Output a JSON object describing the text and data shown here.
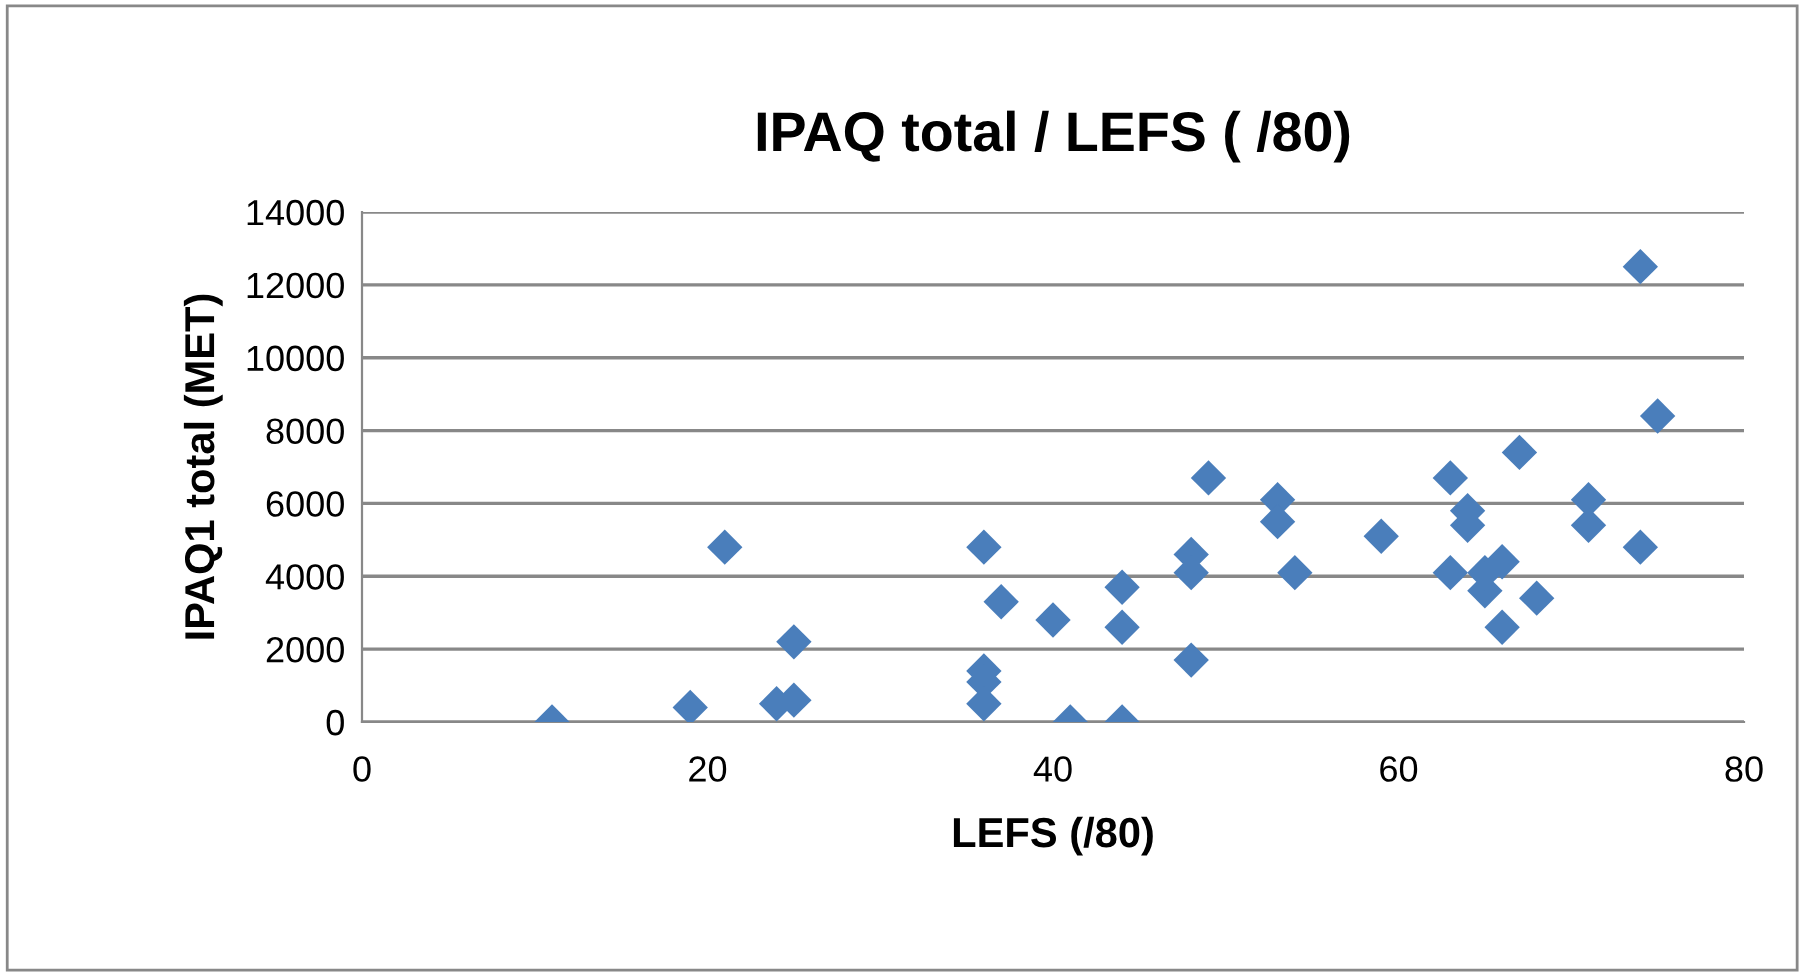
{
  "chart_data": {
    "type": "scatter",
    "title": "IPAQ total / LEFS ( /80)",
    "xlabel": "LEFS (/80)",
    "ylabel": "IPAQ1 total (MET)",
    "x": [
      11,
      19,
      21,
      24,
      25,
      25,
      36,
      36,
      36,
      36,
      37,
      40,
      41,
      44,
      44,
      44,
      48,
      48,
      48,
      49,
      53,
      53,
      54,
      59,
      63,
      63,
      64,
      64,
      65,
      65,
      66,
      66,
      67,
      68,
      71,
      71,
      74,
      74,
      75
    ],
    "series": [
      {
        "color": "#4a7ebb",
        "values": [
          0,
          400,
          4800,
          500,
          600,
          2200,
          4800,
          1400,
          1100,
          500,
          3300,
          2800,
          0,
          3700,
          2600,
          0,
          4600,
          4100,
          1700,
          6700,
          6100,
          5500,
          4100,
          5100,
          6700,
          4100,
          5800,
          5400,
          3600,
          4100,
          4400,
          2600,
          7400,
          3400,
          6100,
          5400,
          12500,
          4800,
          8400
        ]
      }
    ],
    "xlim": [
      0,
      80
    ],
    "xticks": [
      0,
      20,
      40,
      60,
      80
    ],
    "ylim": [
      0,
      14000
    ],
    "yticks": [
      0,
      2000,
      4000,
      6000,
      8000,
      10000,
      12000,
      14000
    ],
    "grid": "y",
    "legend": false,
    "marker": "diamond"
  }
}
